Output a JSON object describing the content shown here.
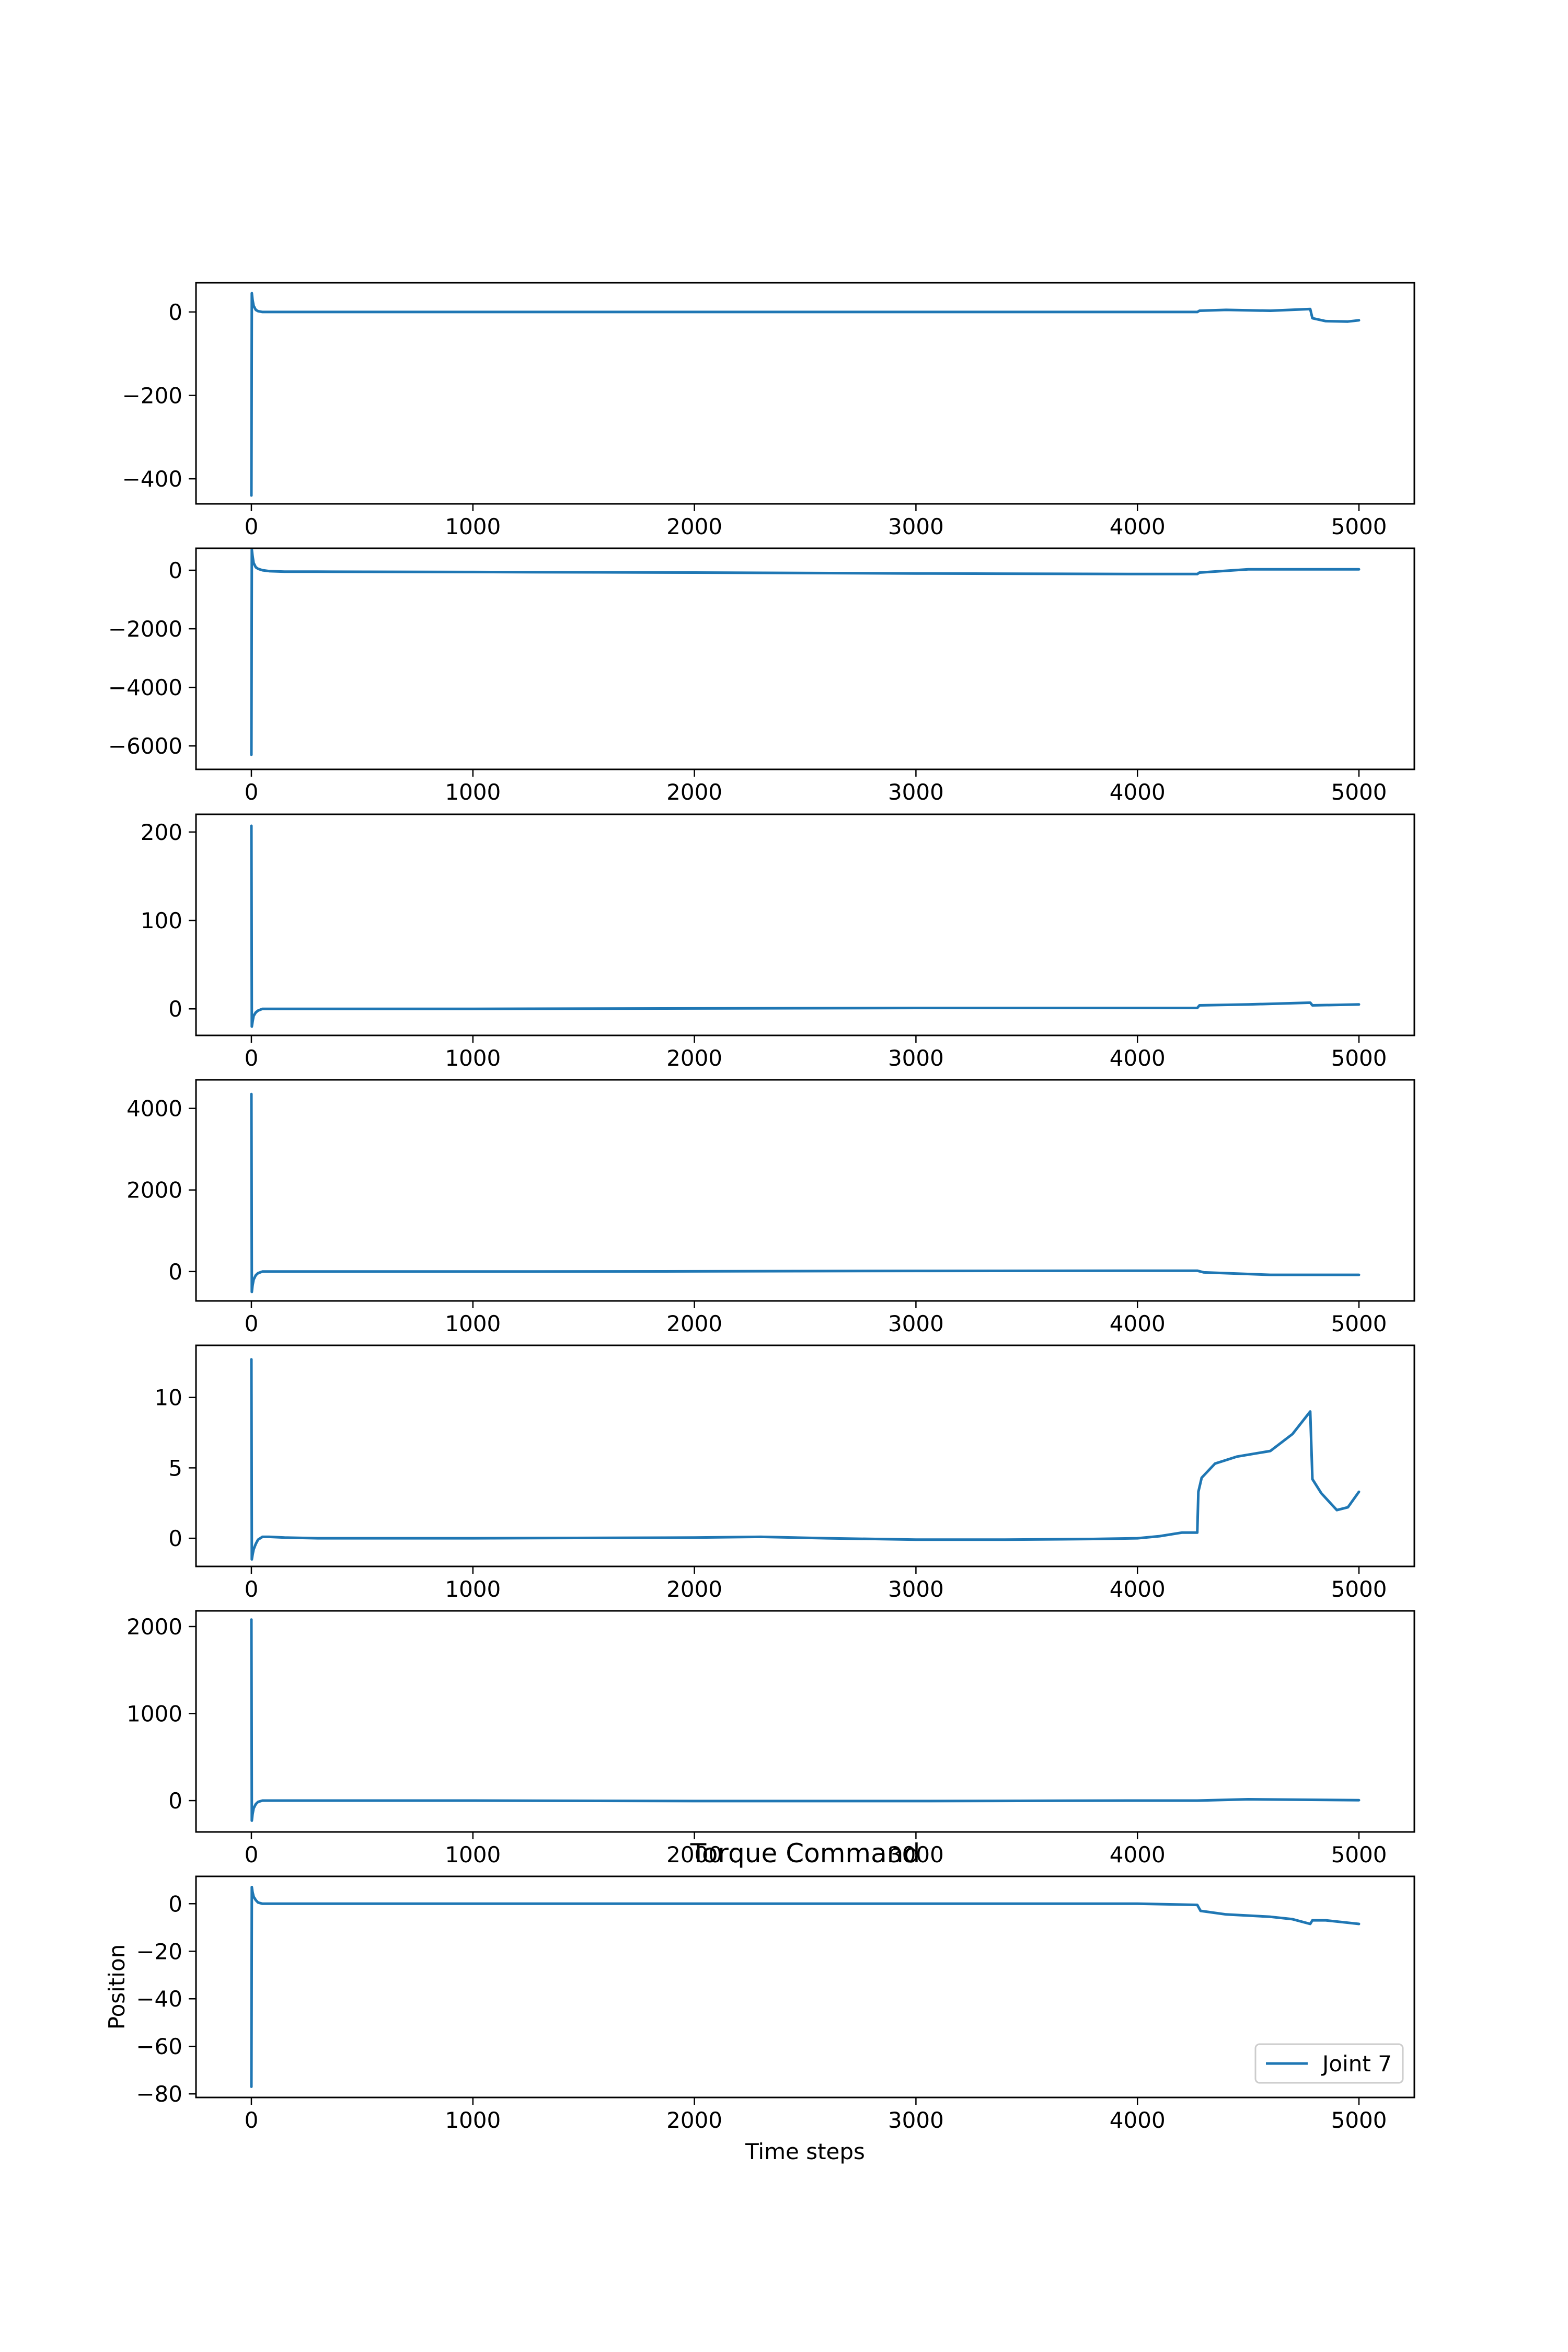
{
  "chart_data": [
    {
      "type": "line",
      "xlim": [
        -250,
        5250
      ],
      "ylim": [
        -460,
        70
      ],
      "xticks": [
        0,
        1000,
        2000,
        3000,
        4000,
        5000
      ],
      "yticks": [
        -400,
        -200,
        0
      ],
      "series": [
        {
          "color": "#1f77b4",
          "x": [
            0,
            2,
            5,
            10,
            20,
            30,
            50,
            80,
            150,
            300,
            1000,
            2000,
            3000,
            4000,
            4270,
            4280,
            4400,
            4600,
            4780,
            4790,
            4850,
            4950,
            5000
          ],
          "y": [
            -440,
            45,
            30,
            15,
            5,
            2,
            0,
            0,
            0,
            0,
            0,
            0,
            0,
            0,
            0,
            3,
            5,
            3,
            7,
            -15,
            -22,
            -23,
            -20
          ]
        }
      ]
    },
    {
      "type": "line",
      "xlim": [
        -250,
        5250
      ],
      "ylim": [
        -6800,
        750
      ],
      "xticks": [
        0,
        1000,
        2000,
        3000,
        4000,
        5000
      ],
      "yticks": [
        -6000,
        -4000,
        -2000,
        0
      ],
      "series": [
        {
          "color": "#1f77b4",
          "x": [
            0,
            2,
            5,
            10,
            20,
            30,
            50,
            80,
            150,
            300,
            1000,
            2000,
            3000,
            4000,
            4270,
            4280,
            4500,
            5000
          ],
          "y": [
            -6300,
            700,
            500,
            250,
            100,
            50,
            0,
            -30,
            -50,
            -50,
            -60,
            -80,
            -110,
            -130,
            -130,
            -80,
            30,
            30
          ]
        }
      ]
    },
    {
      "type": "line",
      "xlim": [
        -250,
        5250
      ],
      "ylim": [
        -30,
        220
      ],
      "xticks": [
        0,
        1000,
        2000,
        3000,
        4000,
        5000
      ],
      "yticks": [
        0,
        100,
        200
      ],
      "series": [
        {
          "color": "#1f77b4",
          "x": [
            0,
            2,
            5,
            10,
            20,
            30,
            50,
            80,
            150,
            300,
            1000,
            2000,
            3000,
            3500,
            4000,
            4270,
            4280,
            4500,
            4780,
            4790,
            5000
          ],
          "y": [
            207,
            -20,
            -15,
            -8,
            -4,
            -2,
            0,
            0,
            0,
            0,
            0,
            0.5,
            1,
            1,
            1,
            1,
            4,
            5,
            7,
            4,
            5
          ]
        }
      ]
    },
    {
      "type": "line",
      "xlim": [
        -250,
        5250
      ],
      "ylim": [
        -720,
        4700
      ],
      "xticks": [
        0,
        1000,
        2000,
        3000,
        4000,
        5000
      ],
      "yticks": [
        0,
        2000,
        4000
      ],
      "series": [
        {
          "color": "#1f77b4",
          "x": [
            0,
            2,
            5,
            10,
            20,
            30,
            50,
            80,
            150,
            300,
            1000,
            2000,
            3000,
            4000,
            4270,
            4300,
            4600,
            5000
          ],
          "y": [
            4350,
            -500,
            -350,
            -200,
            -90,
            -40,
            0,
            0,
            0,
            0,
            0,
            5,
            15,
            20,
            20,
            -20,
            -80,
            -80
          ]
        }
      ]
    },
    {
      "type": "line",
      "xlim": [
        -250,
        5250
      ],
      "ylim": [
        -2,
        13.7
      ],
      "xticks": [
        0,
        1000,
        2000,
        3000,
        4000,
        5000
      ],
      "yticks": [
        0,
        5,
        10
      ],
      "series": [
        {
          "color": "#1f77b4",
          "x": [
            0,
            2,
            5,
            10,
            20,
            30,
            50,
            80,
            150,
            300,
            1000,
            2000,
            2300,
            2600,
            3000,
            3400,
            3800,
            4000,
            4100,
            4200,
            4270,
            4275,
            4290,
            4350,
            4450,
            4600,
            4700,
            4780,
            4790,
            4830,
            4900,
            4950,
            5000
          ],
          "y": [
            12.7,
            -1.5,
            -1.2,
            -0.8,
            -0.4,
            -0.1,
            0.1,
            0.1,
            0.05,
            0,
            0,
            0.05,
            0.1,
            0,
            -0.1,
            -0.1,
            -0.05,
            0,
            0.15,
            0.4,
            0.4,
            3.3,
            4.3,
            5.3,
            5.8,
            6.2,
            7.4,
            9,
            4.2,
            3.2,
            2,
            2.2,
            3.3
          ]
        }
      ]
    },
    {
      "type": "line",
      "xlim": [
        -250,
        5250
      ],
      "ylim": [
        -360,
        2180
      ],
      "xticks": [
        0,
        1000,
        2000,
        3000,
        4000,
        5000
      ],
      "yticks": [
        0,
        1000,
        2000
      ],
      "series": [
        {
          "color": "#1f77b4",
          "x": [
            0,
            2,
            5,
            10,
            20,
            30,
            50,
            80,
            150,
            300,
            1000,
            2000,
            3000,
            4000,
            4270,
            4500,
            5000
          ],
          "y": [
            2080,
            -230,
            -160,
            -90,
            -40,
            -15,
            0,
            0,
            0,
            0,
            0,
            -5,
            -5,
            0,
            0,
            15,
            5
          ]
        }
      ]
    },
    {
      "type": "line",
      "title": "Torque Command",
      "xlabel": "Time steps",
      "ylabel": "Position",
      "xlim": [
        -250,
        5250
      ],
      "ylim": [
        -81.5,
        11.5
      ],
      "xticks": [
        0,
        1000,
        2000,
        3000,
        4000,
        5000
      ],
      "yticks": [
        -80,
        -60,
        -40,
        -20,
        0
      ],
      "legend": {
        "placement": "lower-right",
        "entries": [
          "Joint 7"
        ]
      },
      "series": [
        {
          "name": "Joint 7",
          "color": "#1f77b4",
          "x": [
            0,
            2,
            5,
            10,
            20,
            30,
            50,
            80,
            150,
            300,
            1000,
            2000,
            3000,
            4000,
            4270,
            4285,
            4400,
            4600,
            4700,
            4780,
            4790,
            4850,
            4950,
            5000
          ],
          "y": [
            -77,
            7,
            5,
            3,
            1.5,
            0.5,
            0,
            0,
            0,
            0,
            0,
            0,
            0,
            0,
            -0.5,
            -3,
            -4.5,
            -5.5,
            -6.5,
            -8.5,
            -7,
            -7,
            -8,
            -8.5
          ]
        }
      ]
    }
  ]
}
